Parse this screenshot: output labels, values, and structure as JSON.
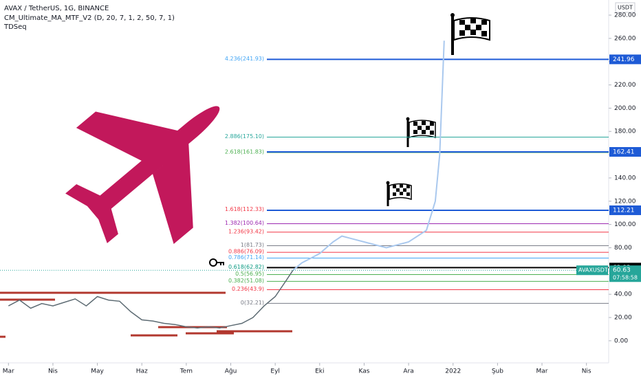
{
  "chart_data": {
    "type": "line",
    "title": "AVAX / TetherUS, 1G, BINANCE",
    "indicators": [
      "CM_Ultimate_MA_MTF_V2 (D, 20, 7, 1, 2, 50, 7, 1)",
      "TDSeq"
    ],
    "currency": "USDT",
    "xlim": [
      -0.19,
      13.5
    ],
    "xticks": [
      {
        "value": 0,
        "label": "Mar"
      },
      {
        "value": 1,
        "label": "Nis"
      },
      {
        "value": 2,
        "label": "May"
      },
      {
        "value": 3,
        "label": "Haz"
      },
      {
        "value": 4,
        "label": "Tem"
      },
      {
        "value": 5,
        "label": "Ağu"
      },
      {
        "value": 6,
        "label": "Eyl"
      },
      {
        "value": 7,
        "label": "Eki"
      },
      {
        "value": 8,
        "label": "Kas"
      },
      {
        "value": 9,
        "label": "Ara"
      },
      {
        "value": 10,
        "label": "2022"
      },
      {
        "value": 11,
        "label": "Şub"
      },
      {
        "value": 12,
        "label": "Mar"
      },
      {
        "value": 13,
        "label": "Nis"
      }
    ],
    "ylim": [
      -19,
      293
    ],
    "yticks": [
      {
        "value": 0,
        "label": "0.00"
      },
      {
        "value": 20,
        "label": "20.00"
      },
      {
        "value": 40,
        "label": "40.00"
      },
      {
        "value": 60,
        "label": "60.00"
      },
      {
        "value": 80,
        "label": "80.00"
      },
      {
        "value": 100,
        "label": "100.00"
      },
      {
        "value": 120,
        "label": "120.00"
      },
      {
        "value": 140,
        "label": "140.00"
      },
      {
        "value": 160,
        "label": "160.00"
      },
      {
        "value": 180,
        "label": "180.00"
      },
      {
        "value": 200,
        "label": "200.00"
      },
      {
        "value": 220,
        "label": "220.00"
      },
      {
        "value": 240,
        "label": "240.00"
      },
      {
        "value": 260,
        "label": "260.00"
      },
      {
        "value": 280,
        "label": "280.00"
      }
    ],
    "series": [
      {
        "name": "AVAXUSDT",
        "color": "#5d6b73",
        "x": [
          0,
          0.25,
          0.5,
          0.75,
          1,
          1.25,
          1.5,
          1.75,
          2,
          2.25,
          2.5,
          2.75,
          3,
          3.25,
          3.5,
          3.75,
          4,
          4.25,
          4.5,
          4.75,
          5,
          5.25,
          5.5,
          5.75,
          6,
          6.25,
          6.4
        ],
        "values": [
          30,
          35,
          28,
          32,
          30,
          33,
          36,
          30,
          38,
          35,
          34,
          25,
          18,
          17,
          15,
          14,
          12,
          11,
          12,
          11,
          13,
          15,
          20,
          30,
          38,
          52,
          60.63
        ]
      },
      {
        "name": "Projection",
        "color": "#a9c8ee",
        "x": [
          6.4,
          6.6,
          7,
          7.3,
          7.5,
          8,
          8.5,
          9,
          9.4,
          9.6,
          9.7,
          9.8
        ],
        "values": [
          60.63,
          67,
          75,
          85,
          90,
          85,
          80,
          85,
          95,
          120,
          160,
          258
        ]
      }
    ],
    "fib_levels": [
      {
        "label": "4.236(241.93)",
        "value": 241.93,
        "color": "#42a5f5"
      },
      {
        "label": "2.886(175.10)",
        "value": 175.1,
        "color": "#26a69a"
      },
      {
        "label": "2.618(161.83)",
        "value": 161.83,
        "color": "#4caf50"
      },
      {
        "label": "1.618(112.33)",
        "value": 112.33,
        "color": "#f23645"
      },
      {
        "label": "1.382(100.64)",
        "value": 100.64,
        "color": "#9c27b0"
      },
      {
        "label": "1.236(93.42)",
        "value": 93.42,
        "color": "#f23645"
      },
      {
        "label": "1(81.73)",
        "value": 81.73,
        "color": "#787b86"
      },
      {
        "label": "0.886(76.09)",
        "value": 76.09,
        "color": "#f23645"
      },
      {
        "label": "0.786(71.14)",
        "value": 71.14,
        "color": "#42a5f5"
      },
      {
        "label": "0.618(62.82)",
        "value": 62.82,
        "color": "#089981"
      },
      {
        "label": "0.5(56.95)",
        "value": 56.95,
        "color": "#4caf50"
      },
      {
        "label": "0.382(51.08)",
        "value": 51.08,
        "color": "#4caf50"
      },
      {
        "label": "0.236(43.9)",
        "value": 43.9,
        "color": "#f23645"
      },
      {
        "label": "0(32.21)",
        "value": 32.21,
        "color": "#787b86"
      }
    ],
    "price_lines": [
      {
        "value": 241.96,
        "color": "#1e5bd6"
      },
      {
        "value": 162.41,
        "color": "#1e5bd6"
      },
      {
        "value": 112.21,
        "color": "#1e5bd6"
      },
      {
        "value": 62.93,
        "color": "#000000"
      }
    ],
    "last_price": {
      "symbol": "AVAXUSDT",
      "value": 60.63,
      "countdown": "07:58:58",
      "color": "#26a69a"
    }
  }
}
